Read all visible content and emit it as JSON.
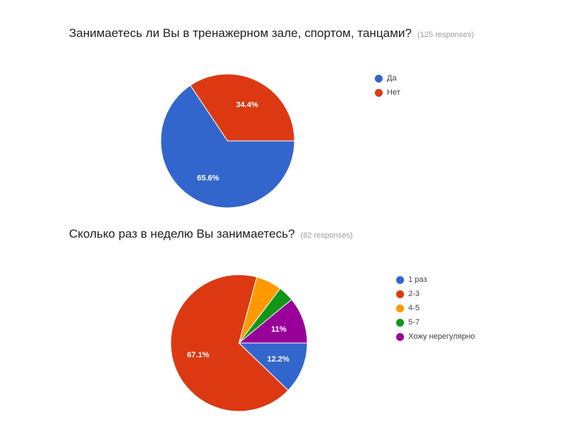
{
  "chart_data": [
    {
      "type": "pie",
      "title": "Занимаетесь ли Вы в тренажерном зале, спортом, танцами?",
      "responses": "(125 responses)",
      "categories": [
        "Да",
        "Нет"
      ],
      "values": [
        65.6,
        34.4
      ],
      "labels": [
        "65.6%",
        "34.4%"
      ],
      "colors": [
        "#3366cc",
        "#dc3912"
      ],
      "legend_position": "right"
    },
    {
      "type": "pie",
      "title": "Сколько раз в неделю Вы занимаетесь?",
      "responses": "(82 responses)",
      "categories": [
        "1 раз",
        "2-3",
        "4-5",
        "5-7",
        "Хожу нерегулярно"
      ],
      "values": [
        12.2,
        67.1,
        6.1,
        3.7,
        11.0
      ],
      "labels": [
        "12.2%",
        "67.1%",
        "",
        "",
        "11%"
      ],
      "colors": [
        "#3366cc",
        "#dc3912",
        "#ff9900",
        "#109618",
        "#990099"
      ],
      "legend_position": "right"
    }
  ]
}
